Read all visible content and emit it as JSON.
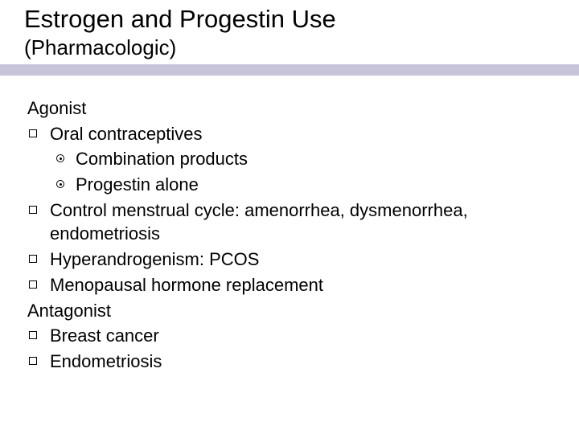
{
  "header": {
    "title": "Estrogen and Progestin Use",
    "subtitle": "(Pharmacologic)"
  },
  "colors": {
    "rule": "#c7c3d9",
    "text": "#000000",
    "background": "#ffffff"
  },
  "typography": {
    "title_fontsize": 31,
    "subtitle_fontsize": 26,
    "body_fontsize": 22,
    "font_family": "Arial"
  },
  "body": {
    "section_a": "Agonist",
    "item_a1": "Oral contraceptives",
    "item_a1_s1": "Combination products",
    "item_a1_s2": "Progestin alone",
    "item_a2": "Control menstrual cycle: amenorrhea, dysmenorrhea, endometriosis",
    "item_a3": "Hyperandrogenism: PCOS",
    "item_a4": "Menopausal hormone replacement",
    "section_b": "Antagonist",
    "item_b1": "Breast cancer",
    "item_b2": "Endometriosis"
  }
}
